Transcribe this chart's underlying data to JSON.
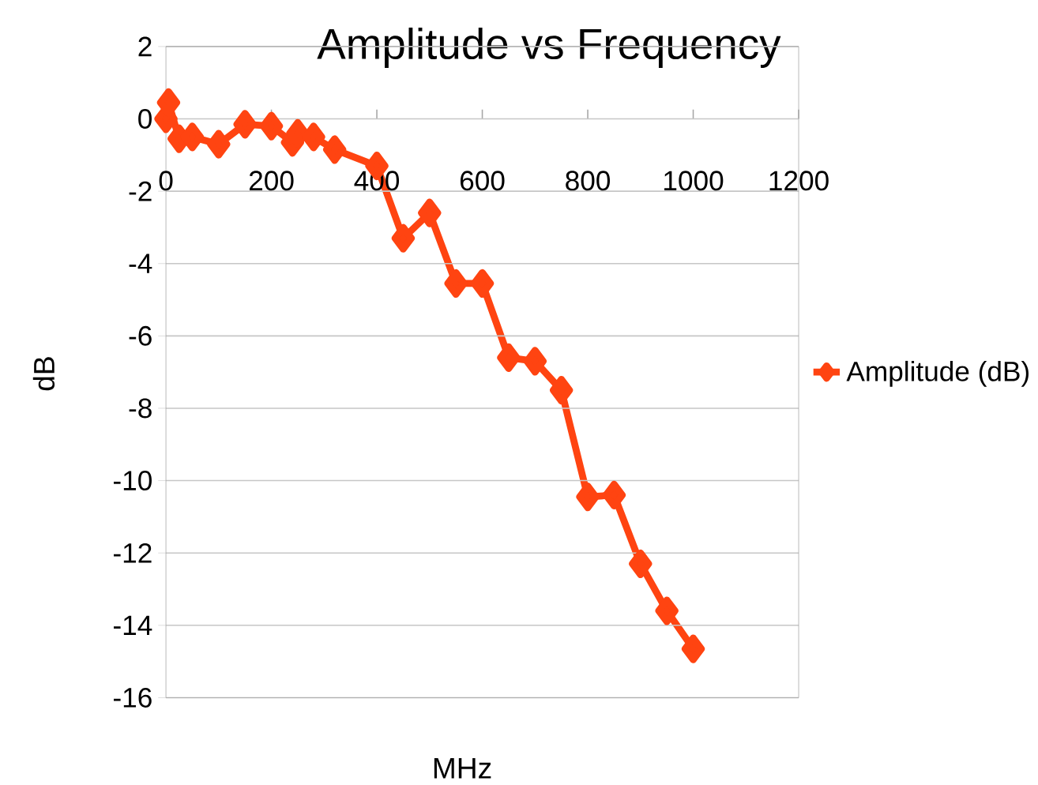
{
  "chart_data": {
    "type": "line",
    "title": "Amplitude vs Frequency",
    "xlabel": "MHz",
    "ylabel": "dB",
    "series": [
      {
        "name": "Amplitude (dB)",
        "color": "#ff4411",
        "x": [
          0,
          5,
          25,
          50,
          100,
          150,
          200,
          240,
          250,
          280,
          320,
          400,
          450,
          500,
          550,
          600,
          650,
          700,
          750,
          800,
          850,
          900,
          950,
          1000
        ],
        "values": [
          0,
          0.45,
          -0.55,
          -0.5,
          -0.7,
          -0.15,
          -0.2,
          -0.65,
          -0.4,
          -0.5,
          -0.85,
          -1.3,
          -3.3,
          -2.6,
          -4.55,
          -4.55,
          -6.6,
          -6.7,
          -7.5,
          -10.45,
          -10.4,
          -12.3,
          -13.6,
          -14.65
        ]
      }
    ],
    "xlim": [
      0,
      1200
    ],
    "ylim": [
      -16,
      2
    ],
    "xticks": [
      0,
      200,
      400,
      600,
      800,
      1000,
      1200
    ],
    "yticks": [
      -16,
      -14,
      -12,
      -10,
      -8,
      -6,
      -4,
      -2,
      0,
      2
    ],
    "grid": "y",
    "legend": "right",
    "marker": "diamond",
    "line_style": "solid"
  }
}
